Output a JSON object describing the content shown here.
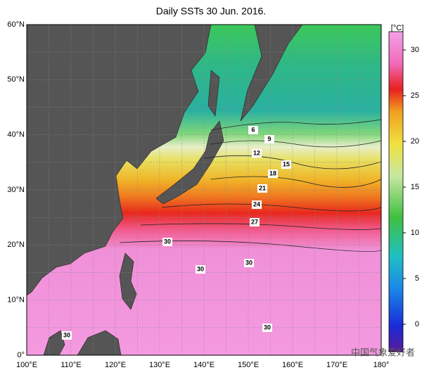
{
  "title": "Daily SSTs 30 Jun. 2016.",
  "colorbar": {
    "unit": "[°C]",
    "range": [
      -3,
      32
    ],
    "ticks": [
      0,
      5,
      10,
      15,
      20,
      25,
      30
    ]
  },
  "lat_labels": [
    "60°N",
    "50°N",
    "40°N",
    "30°N",
    "20°N",
    "10°N",
    "0°"
  ],
  "lon_labels": [
    "100°E",
    "110°E",
    "120°E",
    "130°E",
    "140°E",
    "150°E",
    "160°E",
    "170°E",
    "180°"
  ],
  "contour_labels": [
    6,
    9,
    12,
    15,
    18,
    21,
    24,
    27,
    30,
    30,
    30,
    30,
    30
  ],
  "watermark": "中国气象爱好者"
}
